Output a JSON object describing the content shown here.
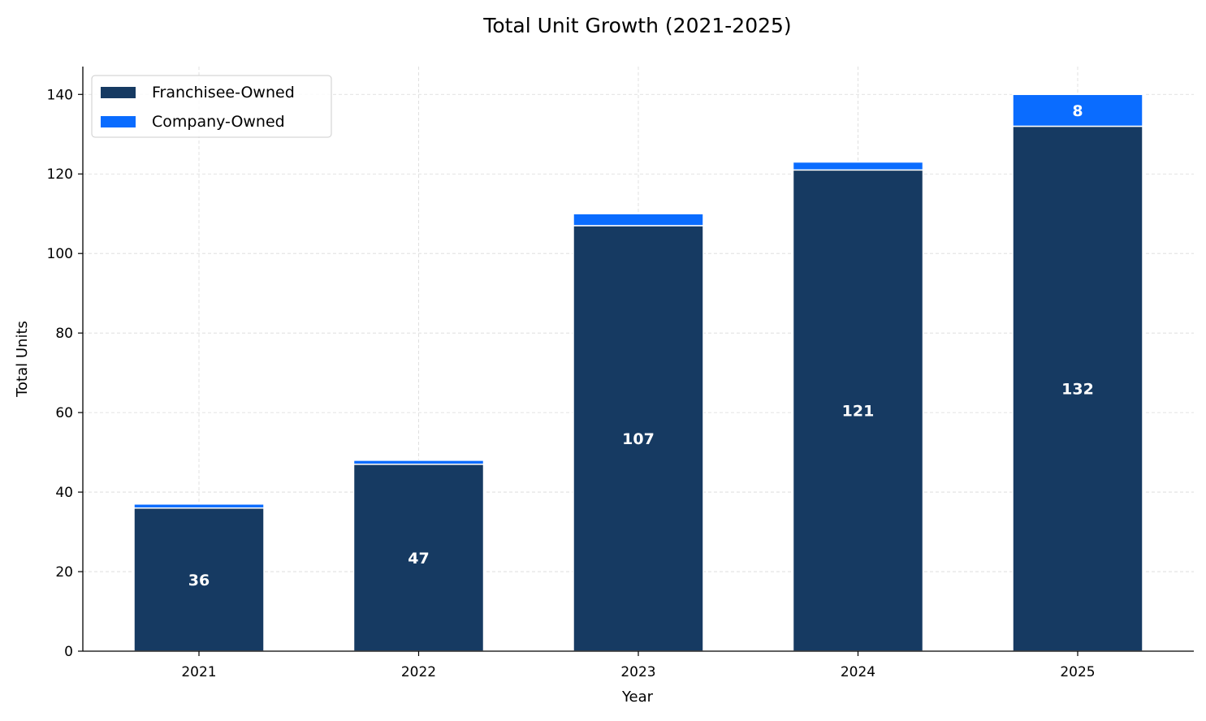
{
  "chart_data": {
    "type": "bar",
    "stacked": true,
    "title": "Total Unit Growth (2021-2025)",
    "xlabel": "Year",
    "ylabel": "Total Units",
    "categories": [
      "2021",
      "2022",
      "2023",
      "2024",
      "2025"
    ],
    "series": [
      {
        "name": "Franchisee-Owned",
        "values": [
          36,
          47,
          107,
          121,
          132
        ],
        "color": "#163a62"
      },
      {
        "name": "Company-Owned",
        "values": [
          1,
          1,
          3,
          2,
          8
        ],
        "color": "#0a6cff"
      }
    ],
    "data_labels": {
      "Franchisee-Owned": [
        "36",
        "47",
        "107",
        "121",
        "132"
      ],
      "Company-Owned": [
        "",
        "",
        "",
        "",
        "8"
      ]
    },
    "ylim": [
      0,
      147
    ],
    "yticks": [
      0,
      20,
      40,
      60,
      80,
      100,
      120,
      140
    ],
    "grid": true,
    "legend_position": "top-left"
  }
}
